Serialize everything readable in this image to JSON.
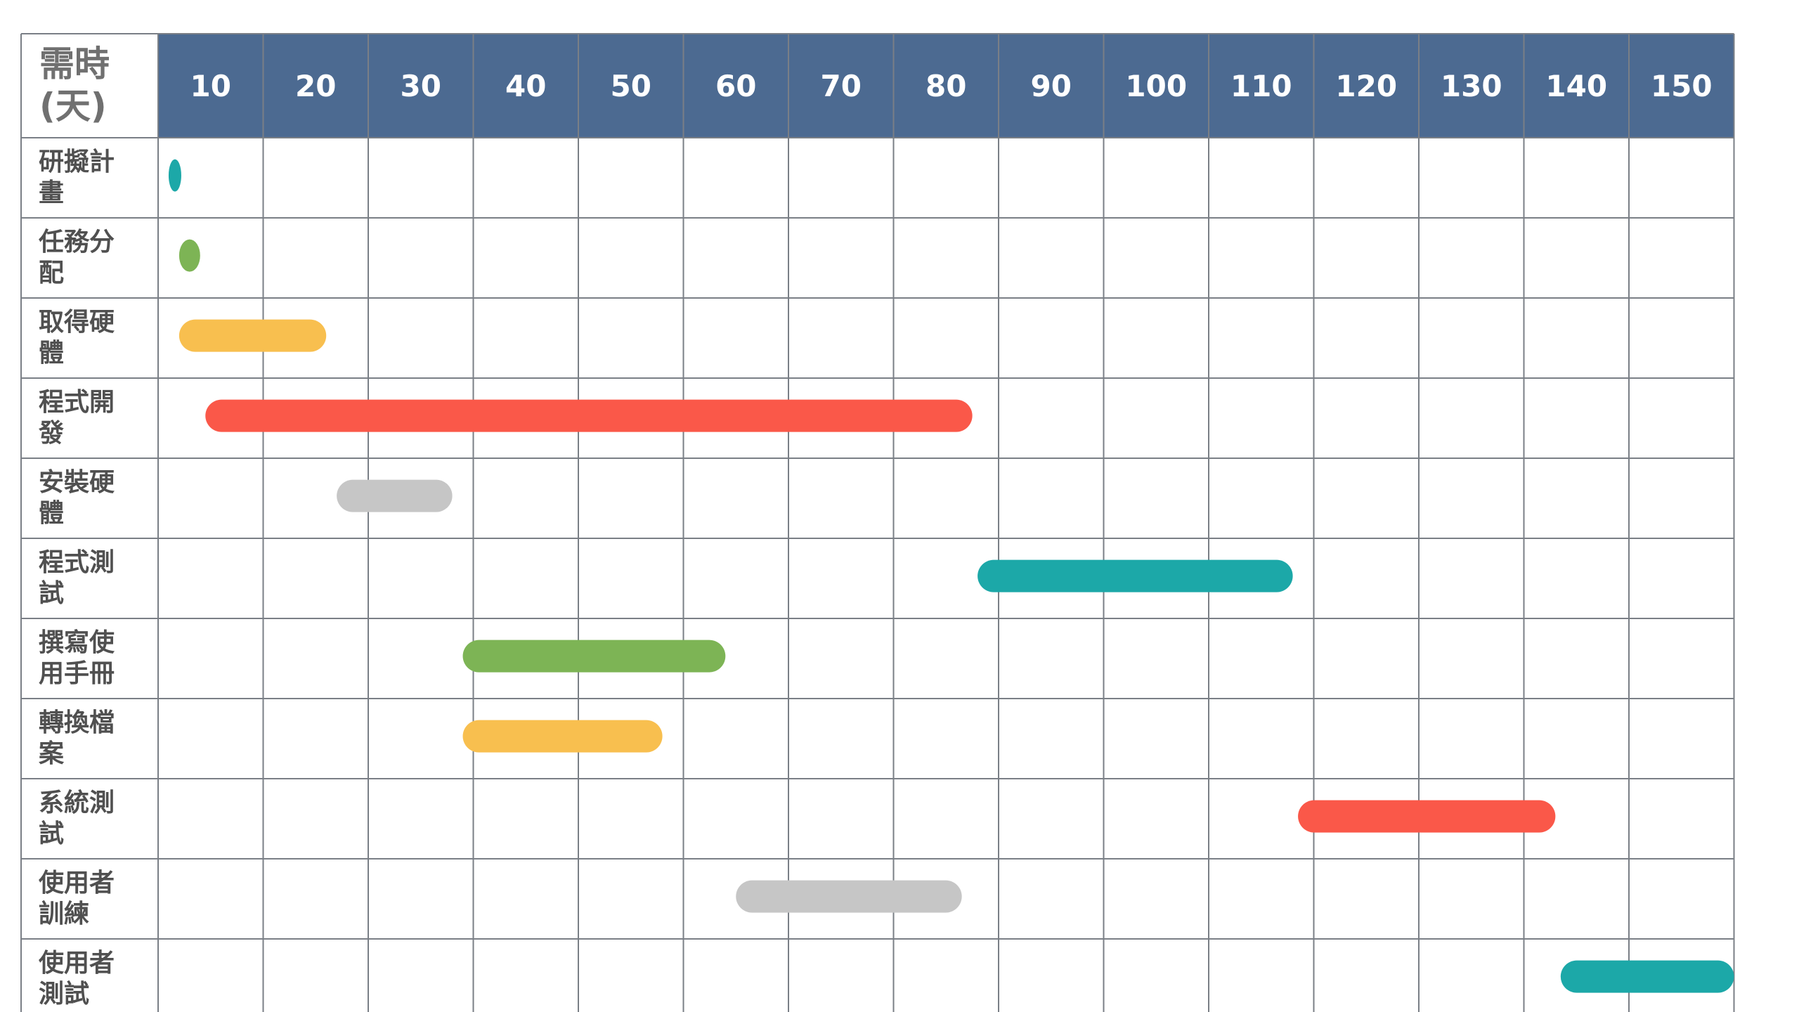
{
  "chart_data": {
    "type": "bar",
    "subtype": "gantt",
    "corner_label": [
      "需時",
      "(天)"
    ],
    "x_ticks": [
      "10",
      "20",
      "30",
      "40",
      "50",
      "60",
      "70",
      "80",
      "90",
      "100",
      "110",
      "120",
      "130",
      "140",
      "150"
    ],
    "xlim": [
      5,
      155
    ],
    "grid": true,
    "header_color": "#4C6A91",
    "grid_color": "#7A7F86",
    "tasks": [
      {
        "label": [
          "研擬計",
          "畫"
        ],
        "start": 6,
        "end": 7,
        "color": "#1CA8A8"
      },
      {
        "label": [
          "任務分",
          "配"
        ],
        "start": 7,
        "end": 9,
        "color": "#7DB455"
      },
      {
        "label": [
          "取得硬",
          "體"
        ],
        "start": 7,
        "end": 21,
        "color": "#F8BF4F"
      },
      {
        "label": [
          "程式開",
          "發"
        ],
        "start": 9.5,
        "end": 82.5,
        "color": "#FA5849"
      },
      {
        "label": [
          "安裝硬",
          "體"
        ],
        "start": 22,
        "end": 33,
        "color": "#C6C6C6"
      },
      {
        "label": [
          "程式測",
          "試"
        ],
        "start": 83,
        "end": 113,
        "color": "#1CA8A8"
      },
      {
        "label": [
          "撰寫使",
          "用手冊"
        ],
        "start": 34,
        "end": 59,
        "color": "#7DB455"
      },
      {
        "label": [
          "轉換檔",
          "案"
        ],
        "start": 34,
        "end": 53,
        "color": "#F8BF4F"
      },
      {
        "label": [
          "系統測",
          "試"
        ],
        "start": 113.5,
        "end": 138,
        "color": "#FA5849"
      },
      {
        "label": [
          "使用者",
          "訓練"
        ],
        "start": 60,
        "end": 81.5,
        "color": "#C6C6C6"
      },
      {
        "label": [
          "使用者",
          "測試"
        ],
        "start": 138.5,
        "end": 155,
        "color": "#1CA8A8"
      }
    ]
  }
}
